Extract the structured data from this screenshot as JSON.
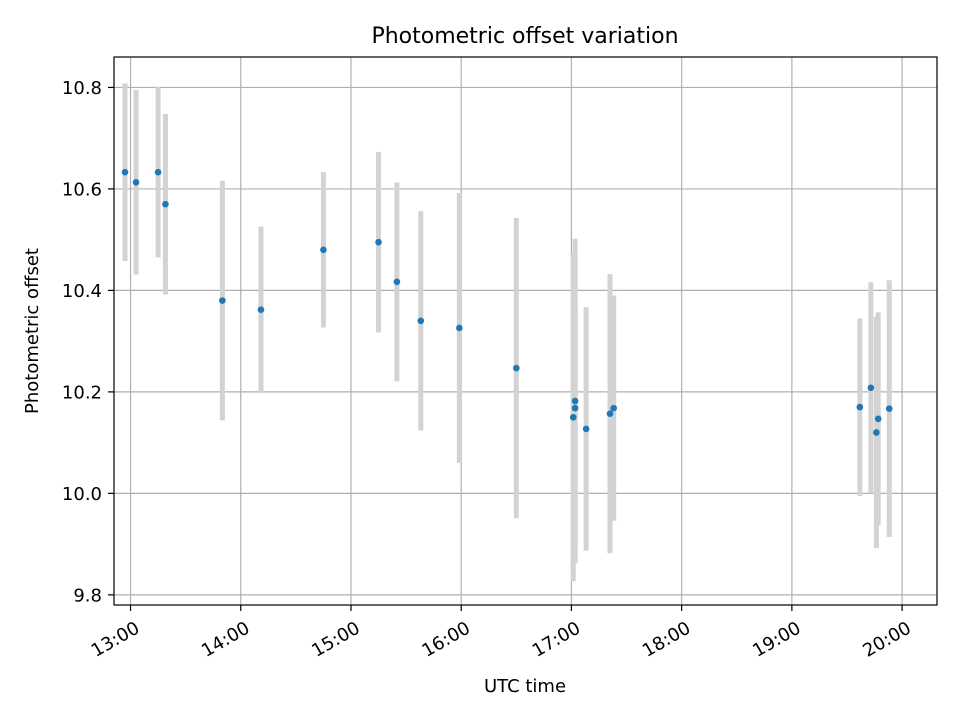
{
  "chart_data": {
    "type": "scatter",
    "title": "Photometric offset variation",
    "xlabel": "UTC time",
    "ylabel": "Photometric offset",
    "grid": true,
    "xlim": [
      "12:51",
      "20:19"
    ],
    "ylim": [
      9.78,
      10.86
    ],
    "x_ticks": [
      "13:00",
      "14:00",
      "15:00",
      "16:00",
      "17:00",
      "18:00",
      "19:00",
      "20:00"
    ],
    "y_ticks": [
      "9.8",
      "10.0",
      "10.2",
      "10.4",
      "10.6",
      "10.8"
    ],
    "colors": {
      "point": "#1f77b4",
      "errorbar": "#d3d3d3",
      "grid": "#b0b0b0"
    },
    "series": [
      {
        "points": [
          {
            "x": "12:57",
            "y": 10.633,
            "err": 0.175
          },
          {
            "x": "13:03",
            "y": 10.613,
            "err": 0.182
          },
          {
            "x": "13:15",
            "y": 10.633,
            "err": 0.168
          },
          {
            "x": "13:19",
            "y": 10.57,
            "err": 0.178
          },
          {
            "x": "13:50",
            "y": 10.38,
            "err": 0.236
          },
          {
            "x": "14:11",
            "y": 10.362,
            "err": 0.164
          },
          {
            "x": "14:45",
            "y": 10.48,
            "err": 0.153
          },
          {
            "x": "15:15",
            "y": 10.495,
            "err": 0.178
          },
          {
            "x": "15:25",
            "y": 10.417,
            "err": 0.196
          },
          {
            "x": "15:38",
            "y": 10.34,
            "err": 0.216
          },
          {
            "x": "15:59",
            "y": 10.326,
            "err": 0.266
          },
          {
            "x": "16:30",
            "y": 10.247,
            "err": 0.296
          },
          {
            "x": "17:01",
            "y": 10.15,
            "err": 0.323
          },
          {
            "x": "17:02",
            "y": 10.168,
            "err": 0.3
          },
          {
            "x": "17:02",
            "y": 10.182,
            "err": 0.32
          },
          {
            "x": "17:08",
            "y": 10.127,
            "err": 0.24
          },
          {
            "x": "17:21",
            "y": 10.157,
            "err": 0.275
          },
          {
            "x": "17:23",
            "y": 10.168,
            "err": 0.222
          },
          {
            "x": "19:37",
            "y": 10.17,
            "err": 0.175
          },
          {
            "x": "19:43",
            "y": 10.208,
            "err": 0.208
          },
          {
            "x": "19:46",
            "y": 10.12,
            "err": 0.228
          },
          {
            "x": "19:47",
            "y": 10.147,
            "err": 0.21
          },
          {
            "x": "19:53",
            "y": 10.167,
            "err": 0.253
          }
        ]
      }
    ]
  }
}
